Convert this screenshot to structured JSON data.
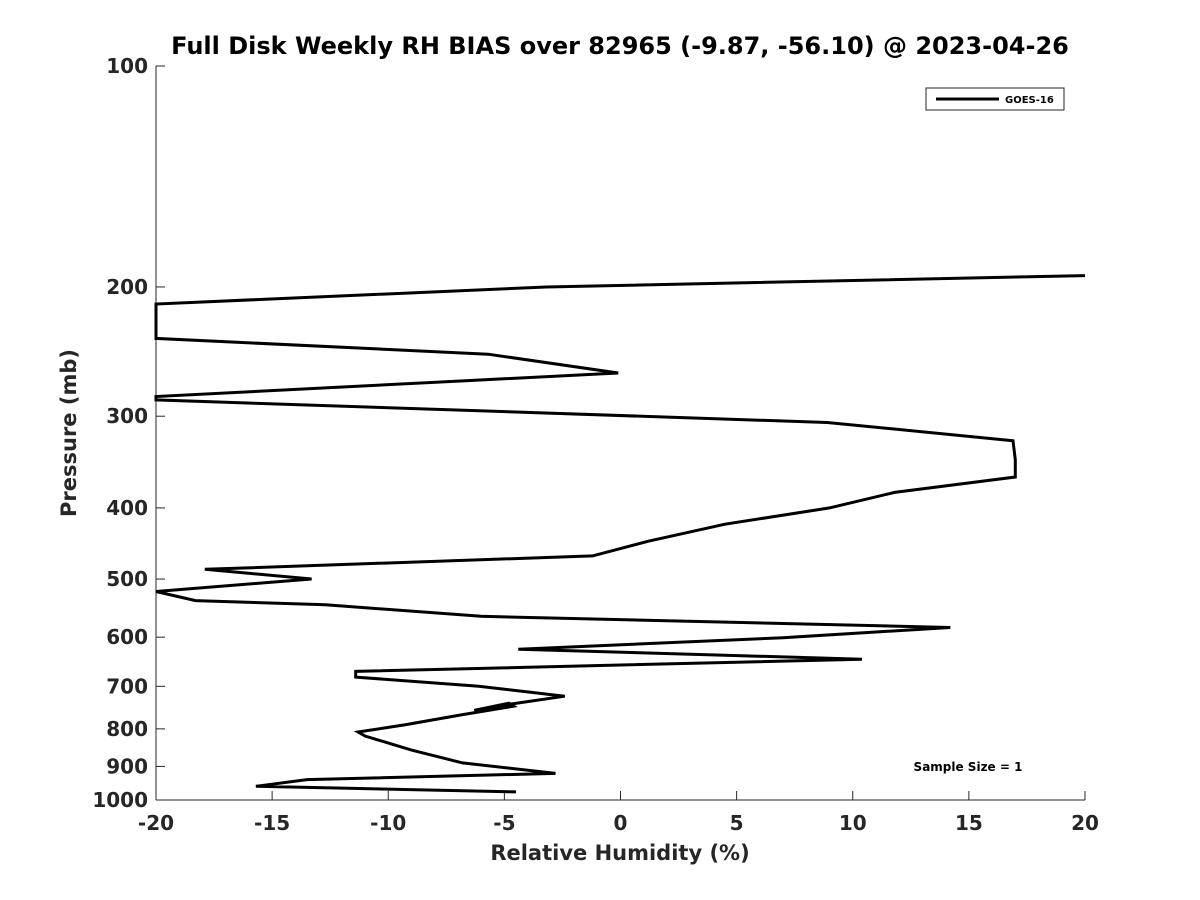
{
  "chart_data": {
    "type": "line",
    "title": "Full Disk Weekly RH BIAS over 82965 (-9.87, -56.10) @ 2023-04-26",
    "xlabel": "Relative Humidity (%)",
    "ylabel": "Pressure (mb)",
    "xlim": [
      -20,
      20
    ],
    "ylim": [
      100,
      1000
    ],
    "y_scale": "log",
    "y_reversed": true,
    "x_ticks": [
      -20,
      -15,
      -10,
      -5,
      0,
      5,
      10,
      15,
      20
    ],
    "x_tick_labels": [
      "-20",
      "-15",
      "-10",
      "-5",
      "0",
      "5",
      "10",
      "15",
      "20"
    ],
    "y_ticks": [
      100,
      200,
      300,
      400,
      500,
      600,
      700,
      800,
      900,
      1000
    ],
    "y_tick_labels": [
      "100",
      "200",
      "300",
      "400",
      "500",
      "600",
      "700",
      "800",
      "900",
      "1000"
    ],
    "grid": false,
    "legend_position": "top-right",
    "annotation": "Sample Size = 1",
    "series": [
      {
        "name": "GOES-16",
        "color": "#000000",
        "x": [
          -4.5,
          -15.7,
          -13.5,
          -2.8,
          -6.8,
          -9.0,
          -11.0,
          -11.3,
          -9.3,
          -6.8,
          -4.6,
          -4.8,
          -6.3,
          -4.7,
          -2.4,
          -6.1,
          -11.4,
          -11.4,
          10.4,
          -4.4,
          7.0,
          14.2,
          -6.0,
          -12.7,
          -18.3,
          -20.0,
          -13.3,
          -17.9,
          -1.2,
          1.2,
          4.5,
          9.0,
          11.8,
          17.0,
          17.0,
          16.9,
          8.9,
          -20.0,
          -20.0,
          -0.1,
          -5.7,
          -20.0,
          -20.0,
          -3.2,
          20.0
        ],
        "y": [
          975,
          958,
          938,
          920,
          890,
          855,
          818,
          808,
          790,
          765,
          745,
          738,
          755,
          740,
          722,
          700,
          680,
          668,
          643,
          623,
          601,
          582,
          562,
          542,
          535,
          520,
          500,
          485,
          465,
          444,
          421,
          400,
          381,
          363,
          344,
          324,
          306,
          285,
          282,
          262,
          247,
          235,
          211,
          200,
          193
        ]
      }
    ]
  }
}
